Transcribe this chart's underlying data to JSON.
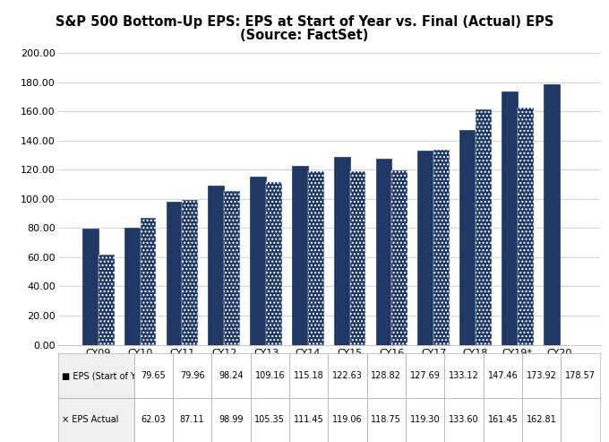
{
  "title_line1": "S&P 500 Bottom-Up EPS: EPS at Start of Year vs. Final (Actual) EPS",
  "title_line2": "(Source: FactSet)",
  "categories": [
    "CY09",
    "CY10",
    "CY11",
    "CY12",
    "CY13",
    "CY14",
    "CY15",
    "CY16",
    "CY17",
    "CY18",
    "CY19*",
    "CY20"
  ],
  "eps_start": [
    79.65,
    79.96,
    98.24,
    109.16,
    115.18,
    122.63,
    128.82,
    127.69,
    133.12,
    147.46,
    173.92,
    178.57
  ],
  "eps_actual": [
    62.03,
    87.11,
    98.99,
    105.35,
    111.45,
    119.06,
    118.75,
    119.3,
    133.6,
    161.45,
    162.81,
    null
  ],
  "ylim": [
    0,
    200
  ],
  "yticks": [
    0,
    20,
    40,
    60,
    80,
    100,
    120,
    140,
    160,
    180,
    200
  ],
  "bar_color_solid": "#1F3864",
  "hatch_pattern": "....",
  "bar_width": 0.38,
  "table_label_start": "EPS (Start of Yr.)",
  "table_label_actual": "EPS Actual",
  "background_color": "#FFFFFF",
  "grid_color": "#C0C0C0",
  "title_fontsize": 10.5,
  "axis_fontsize": 8,
  "table_fontsize": 7
}
